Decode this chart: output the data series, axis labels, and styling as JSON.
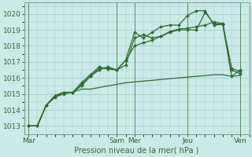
{
  "bg_color": "#cce8e8",
  "grid_color": "#99cccc",
  "line_color": "#2d6e2d",
  "label_color": "#2d6e2d",
  "xlabel": "Pression niveau de la mer( hPa )",
  "ylim": [
    1012.5,
    1020.7
  ],
  "yticks": [
    1013,
    1014,
    1015,
    1016,
    1017,
    1018,
    1019,
    1020
  ],
  "xtick_labels": [
    "Mar",
    "Sam",
    "Mer",
    "Jeu",
    "Ven"
  ],
  "xtick_positions": [
    0,
    10,
    12,
    18,
    24
  ],
  "xlim": [
    -0.5,
    25
  ],
  "series": [
    {
      "x": [
        0,
        1,
        2,
        3,
        4,
        5,
        6,
        7,
        8,
        9,
        10,
        11,
        12,
        13,
        14,
        15,
        16,
        17,
        18,
        19,
        20,
        21,
        22,
        23,
        24
      ],
      "y": [
        1013.0,
        1013.0,
        1014.3,
        1014.8,
        1015.0,
        1015.1,
        1015.5,
        1016.1,
        1016.5,
        1016.7,
        1016.5,
        1016.8,
        1018.5,
        1018.7,
        1018.5,
        1018.6,
        1018.85,
        1019.0,
        1019.0,
        1019.0,
        1020.1,
        1019.4,
        1019.35,
        1016.5,
        1016.25
      ],
      "marker": true,
      "linestyle": "-"
    },
    {
      "x": [
        0,
        1,
        2,
        3,
        4,
        5,
        6,
        7,
        8,
        9,
        10,
        11,
        12,
        13,
        14,
        15,
        16,
        17,
        18,
        19,
        20,
        21,
        22,
        23,
        24
      ],
      "y": [
        1013.0,
        1013.0,
        1014.3,
        1014.9,
        1015.1,
        1015.1,
        1015.6,
        1016.1,
        1016.6,
        1016.6,
        1016.5,
        1017.1,
        1018.85,
        1018.5,
        1018.85,
        1019.2,
        1019.3,
        1019.3,
        1019.9,
        1020.2,
        1020.2,
        1019.3,
        1019.35,
        1016.1,
        1016.5
      ],
      "marker": true,
      "linestyle": "-"
    },
    {
      "x": [
        0,
        1,
        2,
        3,
        4,
        5,
        6,
        7,
        8,
        9,
        10,
        11,
        12,
        13,
        14,
        15,
        16,
        17,
        18,
        19,
        20,
        21,
        22,
        23,
        24
      ],
      "y": [
        1013.0,
        1013.0,
        1014.3,
        1014.8,
        1015.1,
        1015.1,
        1015.3,
        1015.3,
        1015.4,
        1015.5,
        1015.6,
        1015.7,
        1015.75,
        1015.8,
        1015.85,
        1015.9,
        1015.95,
        1016.0,
        1016.05,
        1016.1,
        1016.15,
        1016.2,
        1016.2,
        1016.1,
        1016.15
      ],
      "marker": false,
      "linestyle": "-"
    },
    {
      "x": [
        0,
        1,
        2,
        3,
        4,
        5,
        6,
        7,
        8,
        9,
        10,
        11,
        12,
        13,
        14,
        15,
        16,
        17,
        18,
        19,
        20,
        21,
        22,
        23,
        24
      ],
      "y": [
        1013.0,
        1013.0,
        1014.3,
        1014.9,
        1015.1,
        1015.1,
        1015.7,
        1016.2,
        1016.7,
        1016.55,
        1016.5,
        1017.1,
        1018.0,
        1018.2,
        1018.35,
        1018.6,
        1018.9,
        1019.05,
        1019.1,
        1019.2,
        1019.3,
        1019.5,
        1019.4,
        1016.6,
        1016.4
      ],
      "marker": true,
      "linestyle": "-"
    }
  ]
}
